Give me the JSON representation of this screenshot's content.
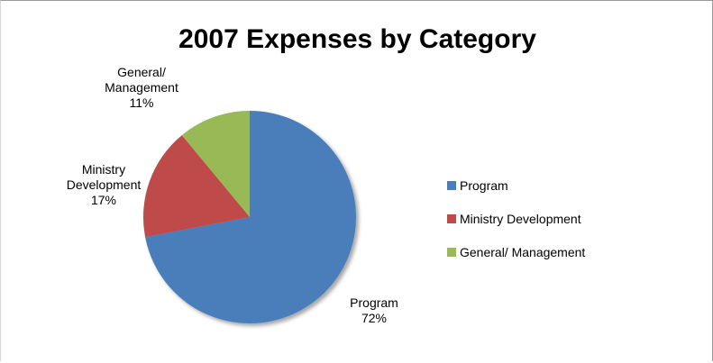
{
  "chart_data": {
    "type": "pie",
    "title": "2007 Expenses by Category",
    "slices": [
      {
        "label": "Program",
        "value": 72,
        "percent_label": "72%",
        "color": "#4a7ebb"
      },
      {
        "label": "Ministry Development",
        "value": 17,
        "percent_label": "17%",
        "color": "#be4b48"
      },
      {
        "label": "General/ Management",
        "value": 11,
        "percent_label": "11%",
        "color": "#98b954"
      }
    ],
    "data_labels": [
      {
        "lines": [
          "Program",
          "72%"
        ]
      },
      {
        "lines": [
          "Ministry",
          "Development",
          "17%"
        ]
      },
      {
        "lines": [
          "General/",
          "Management",
          "11%"
        ]
      }
    ],
    "legend": {
      "position": "right",
      "entries": [
        "Program",
        "Ministry Development",
        "General/ Management"
      ]
    }
  }
}
